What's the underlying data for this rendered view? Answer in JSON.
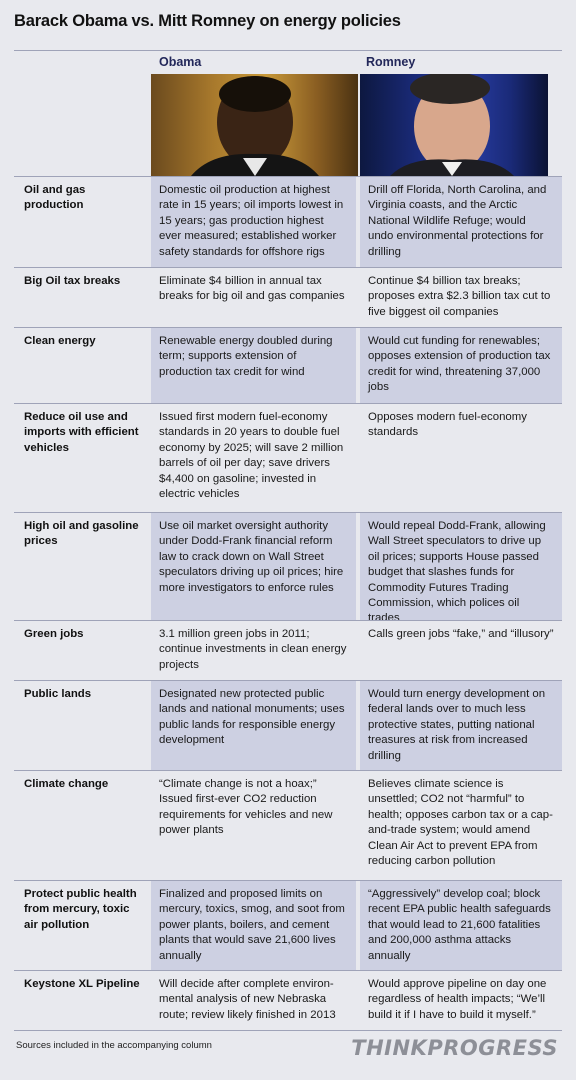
{
  "title": "Barack Obama vs. Mitt Romney on energy policies",
  "columns": {
    "obama": "Obama",
    "romney": "Romney"
  },
  "rows": [
    {
      "topic": "Oil and gas production",
      "obama": "Domestic oil production at highest rate in 15 years; oil imports lowest in 15 years; gas production highest ever measured; established worker safety standards for offshore rigs",
      "romney": "Drill off Florida, North Carolina, and Virginia coasts, and the Arctic National Wildlife Refuge; would undo environmental protections for drilling"
    },
    {
      "topic": "Big Oil tax breaks",
      "obama": "Eliminate $4 billion in annual tax breaks for big oil and gas companies",
      "romney": "Continue $4 billion tax breaks; proposes extra  $2.3 billion tax cut to five biggest oil companies"
    },
    {
      "topic": "Clean energy",
      "obama": "Renewable energy doubled during term; supports extension of production tax credit for wind",
      "romney": "Would cut funding for renewables; opposes extension of production tax credit for wind, threatening 37,000 jobs"
    },
    {
      "topic": "Reduce oil use and imports with efficient vehicles",
      "obama": "Issued first modern fuel-economy standards in 20 years to double fuel economy by 2025; will save 2 million barrels of oil per day; save drivers $4,400 on gasoline; invested in electric vehicles",
      "romney": "Opposes modern fuel-economy standards"
    },
    {
      "topic": "High oil and gasoline prices",
      "obama": "Use oil market oversight authority under Dodd-Frank financial reform law to crack down on Wall Street speculators driving up oil prices; hire more investigators to enforce rules",
      "romney": "Would repeal Dodd-Frank, allowing Wall Street speculators to drive up oil prices; supports House passed budget that slashes funds for Commodity Futures Trading Commission, which polices oil trades"
    },
    {
      "topic": "Green jobs",
      "obama": "3.1 million green jobs in 2011; continue investments in clean energy projects",
      "romney": "Calls green jobs “fake,” and “illusory”"
    },
    {
      "topic": "Public lands",
      "obama": "Designated new protected public lands and national monuments; uses public lands for responsible energy development",
      "romney": " Would turn energy development on federal lands over to much less protective states, putting national treasures at risk from increased drilling"
    },
    {
      "topic": "Climate change",
      "obama": "“Climate change is not a hoax;” Issued first-ever CO2 reduction requirements for vehicles and new power plants",
      "romney": "Believes climate science is unsettled; CO2 not “harmful” to health; opposes carbon tax or a cap-and-trade system; would amend Clean Air Act to prevent EPA from reducing carbon pollution"
    },
    {
      "topic": "Protect public health from mercury, toxic air pollution",
      "obama": "Finalized and proposed limits on mercury, toxics, smog, and soot from power plants, boilers, and cement plants that would save 21,600 lives annually",
      "romney": "“Aggressively” develop coal; block recent EPA public health safeguards that would lead to 21,600 fatalities and 200,000 asthma attacks annually"
    },
    {
      "topic": "Keystone XL Pipeline",
      "obama": "Will decide after complete environ-mental analysis of new Nebraska route; review likely finished in 2013",
      "romney": "Would approve pipeline on day one regardless of health impacts; “We’ll build it if I have to build it myself.”"
    }
  ],
  "footer": {
    "sources": "Sources included in the accompanying column",
    "logo": "THINKPROGRESS"
  },
  "colors": {
    "shade": "#cdd0e2",
    "background": "#e8e9ee",
    "rule": "#9fa3b8",
    "logo": "#8d8f97"
  }
}
